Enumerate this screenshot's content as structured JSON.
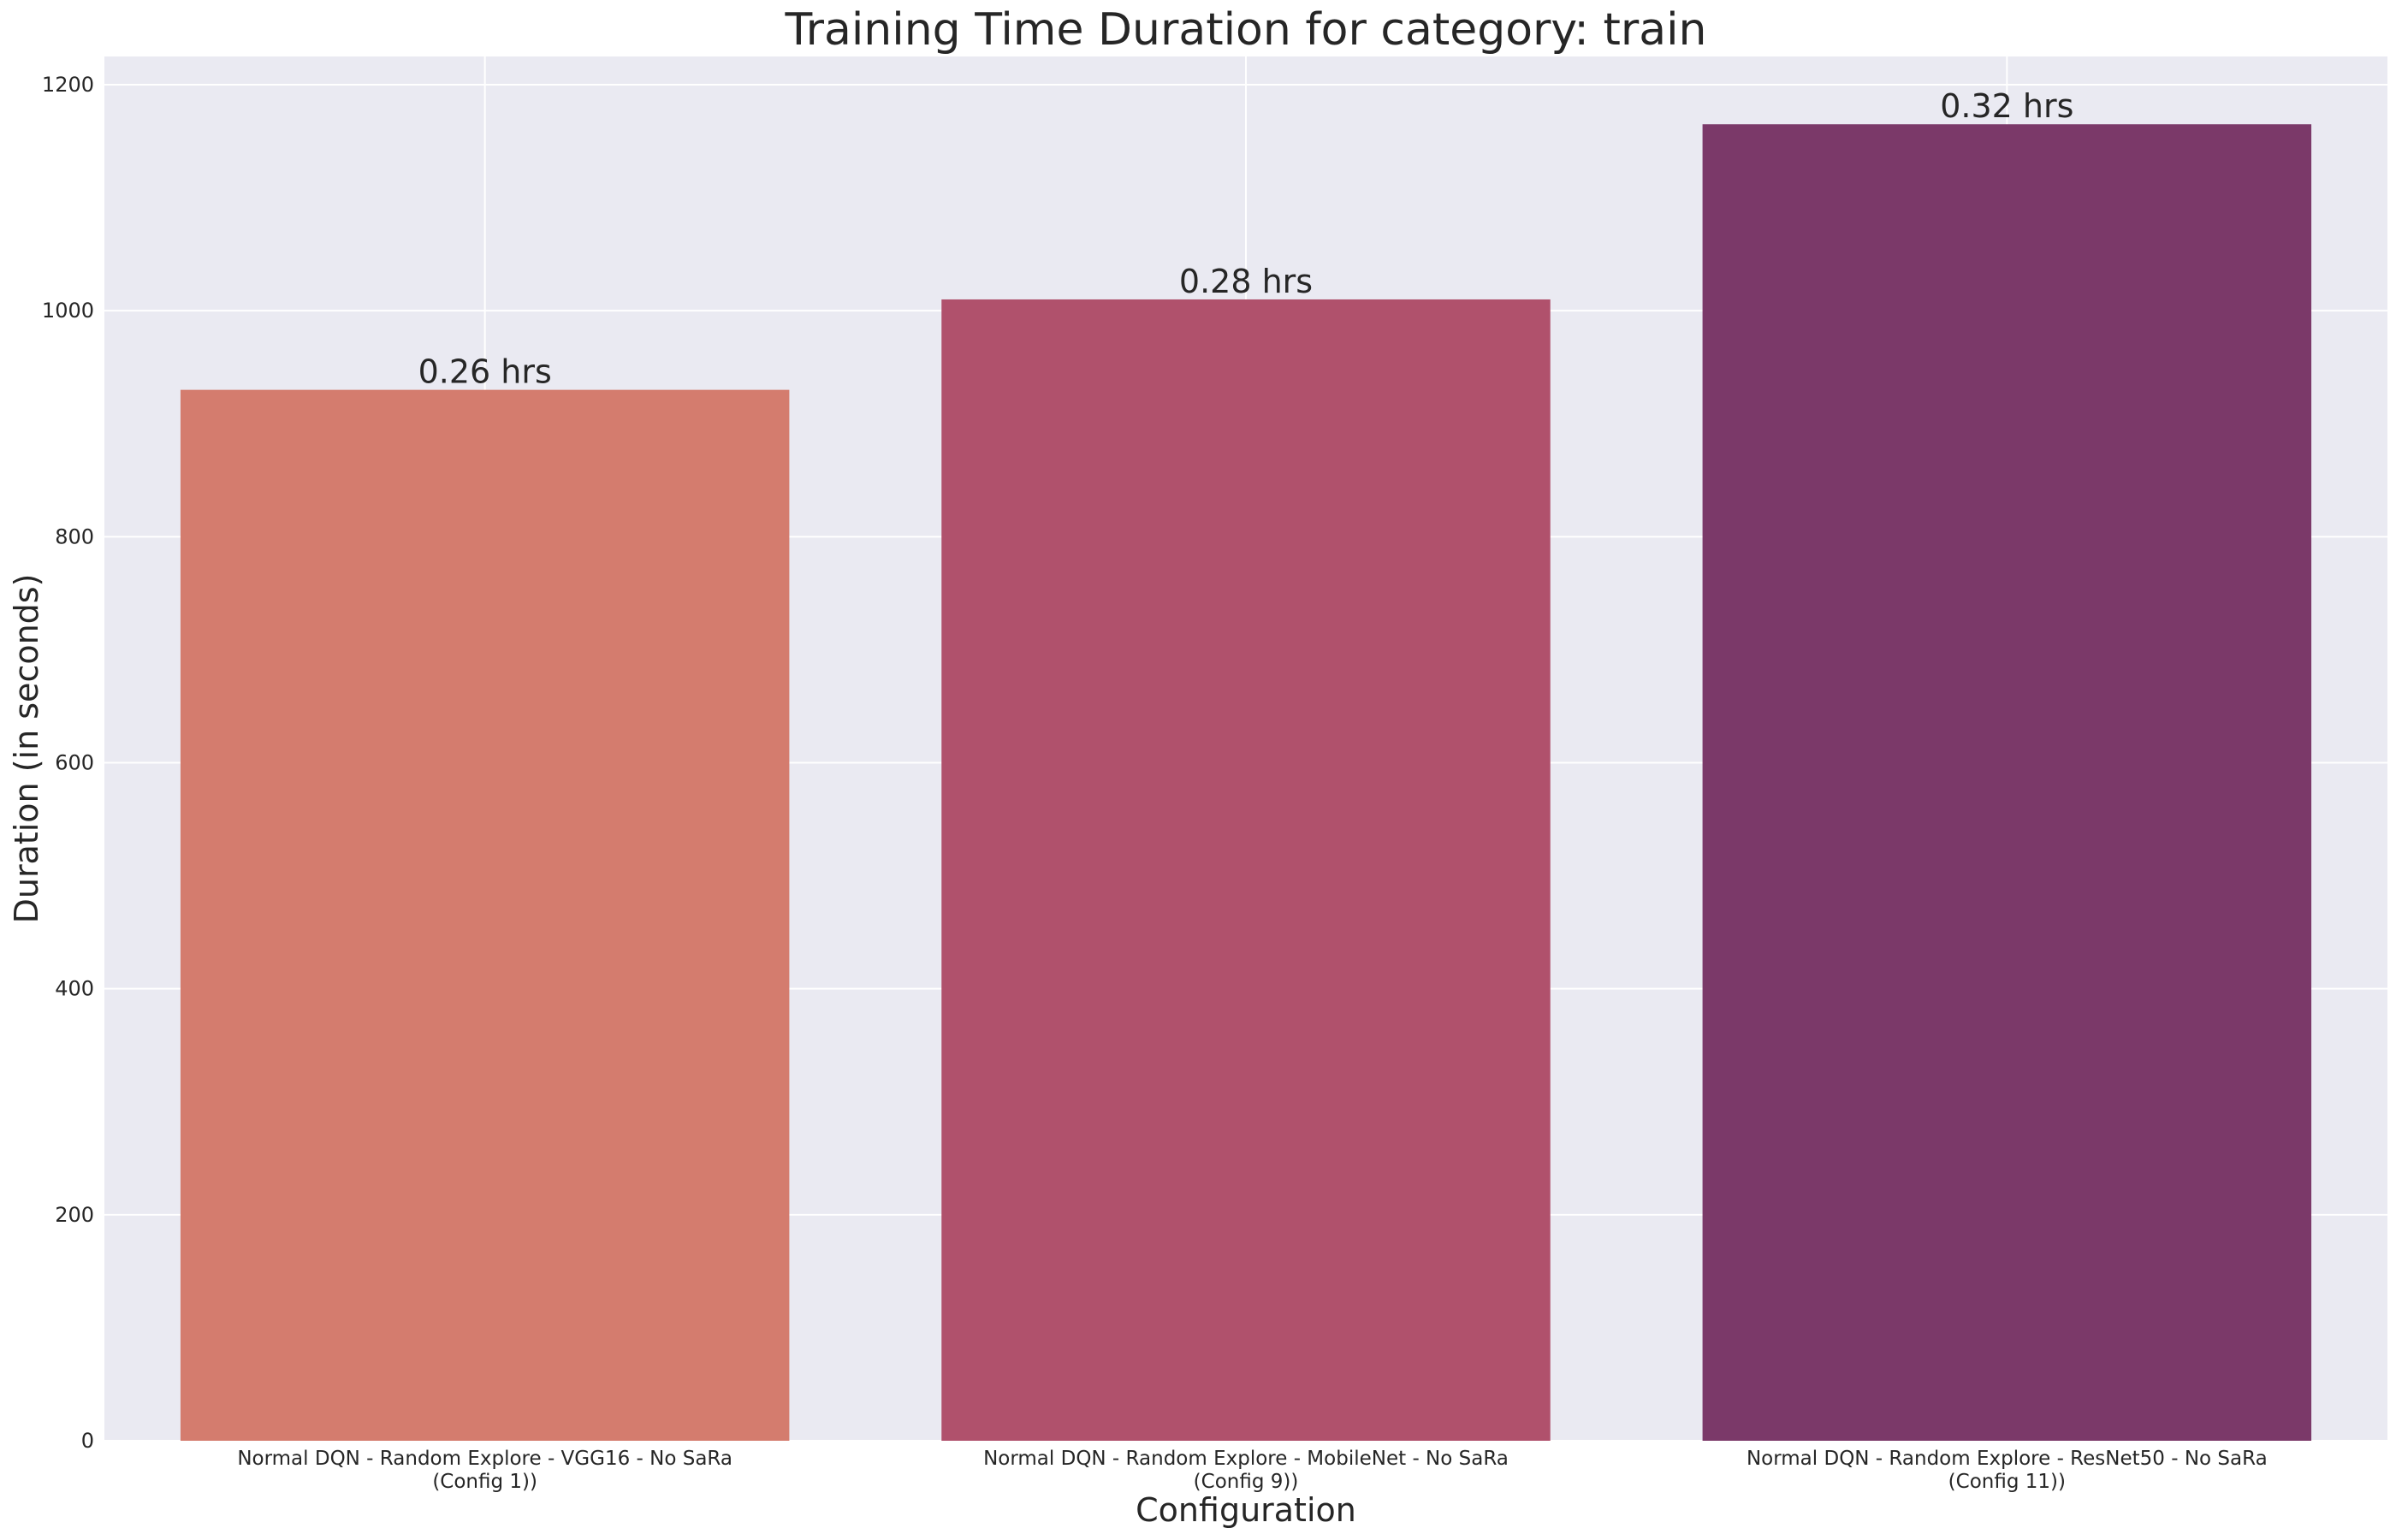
{
  "chart_data": {
    "type": "bar",
    "title": "Training Time Duration for category: train",
    "xlabel": "Configuration",
    "ylabel": "Duration (in seconds)",
    "ylim": [
      0,
      1225
    ],
    "yticks": [
      0,
      200,
      400,
      600,
      800,
      1000,
      1200
    ],
    "grid": true,
    "categories": [
      [
        "Normal DQN - Random Explore - VGG16 - No SaRa",
        "(Config 1))"
      ],
      [
        "Normal DQN - Random Explore - MobileNet - No SaRa",
        "(Config 9))"
      ],
      [
        "Normal DQN - Random Explore - ResNet50 - No SaRa",
        "(Config 11))"
      ]
    ],
    "values": [
      930,
      1010,
      1165
    ],
    "data_labels": [
      "0.26 hrs",
      "0.28 hrs",
      "0.32 hrs"
    ],
    "colors": [
      "#d47c6e",
      "#b0516c",
      "#7b3969"
    ],
    "background": "#eaeaf2"
  }
}
